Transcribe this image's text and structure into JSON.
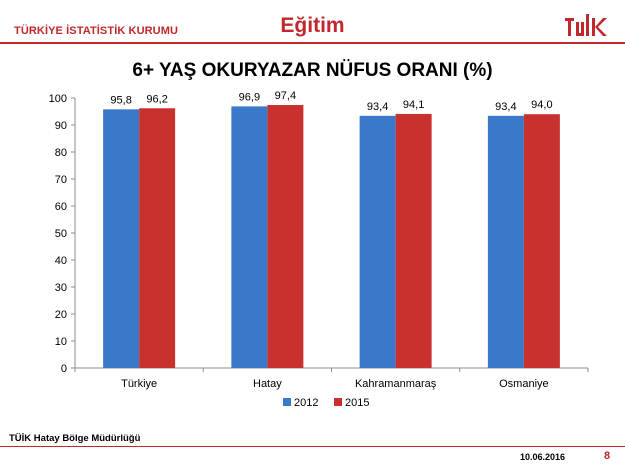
{
  "header": {
    "organization": "TÜRKİYE İSTATİSTİK KURUMU",
    "topic": "Eğitim",
    "logo_text": "TÜİK"
  },
  "footer": {
    "office": "TÜİK Hatay Bölge Müdürlüğü",
    "date": "10.06.2016",
    "page": "8"
  },
  "colors": {
    "accent": "#c0282d",
    "series_2012": "#3a78c9",
    "series_2015": "#c9312f"
  },
  "chart_data": {
    "type": "bar",
    "title": "6+ YAŞ OKURYAZAR NÜFUS ORANI (%)",
    "categories": [
      "Türkiye",
      "Hatay",
      "Kahramanmaraş",
      "Osmaniye"
    ],
    "series": [
      {
        "name": "2012",
        "values": [
          95.8,
          96.9,
          93.4,
          93.4
        ],
        "labels": [
          "95,8",
          "96,9",
          "93,4",
          "93,4"
        ]
      },
      {
        "name": "2015",
        "values": [
          96.2,
          97.4,
          94.1,
          94.0
        ],
        "labels": [
          "96,2",
          "97,4",
          "94,1",
          "94,0"
        ]
      }
    ],
    "ylim": [
      0,
      100
    ],
    "yticks": [
      0,
      10,
      20,
      30,
      40,
      50,
      60,
      70,
      80,
      90,
      100
    ],
    "grid": false,
    "legend": "bottom"
  }
}
